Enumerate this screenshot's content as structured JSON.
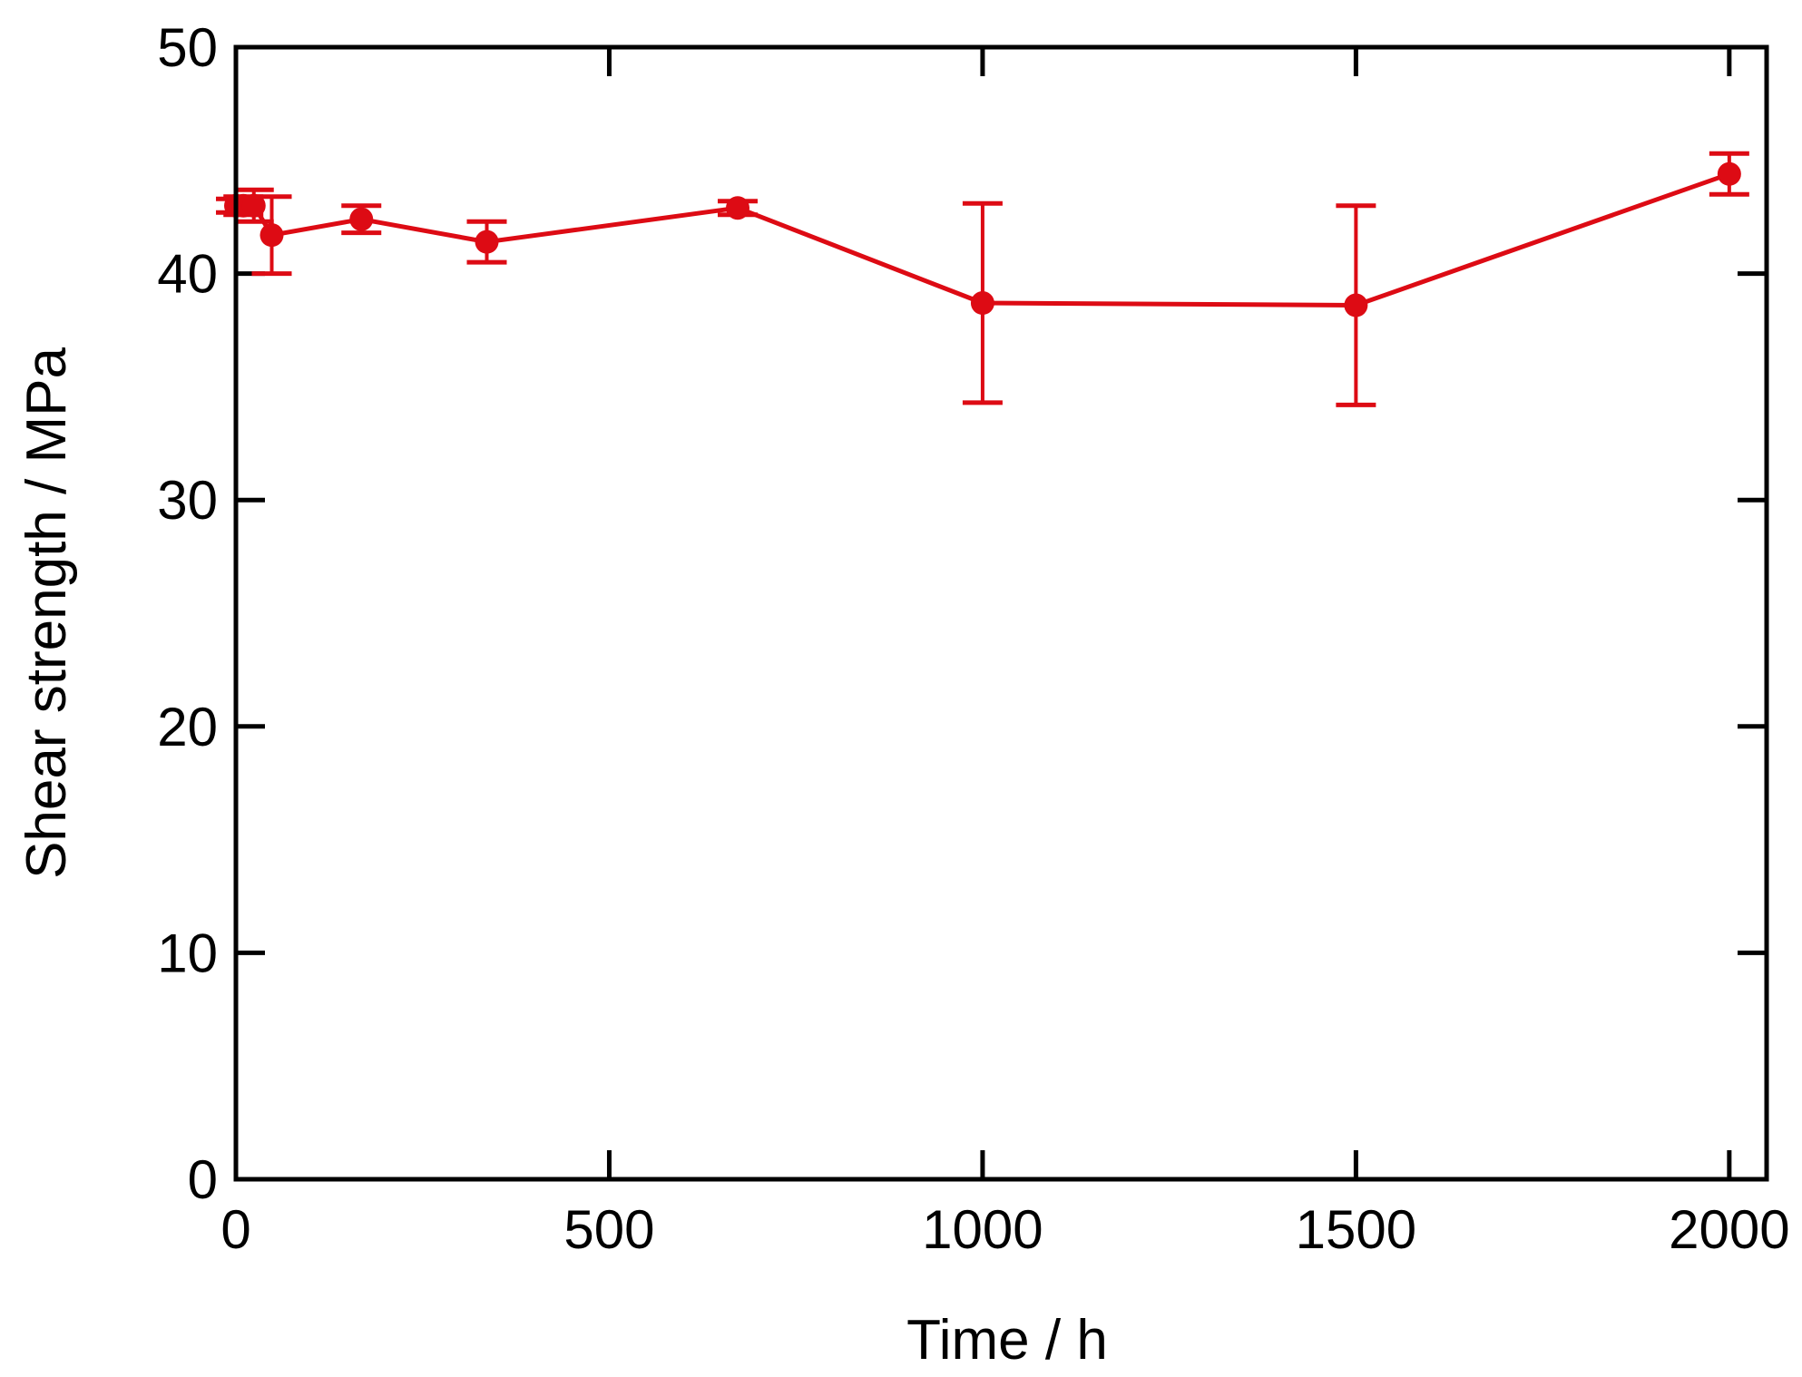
{
  "chart_data": {
    "type": "line",
    "title": "",
    "xlabel": "Time / h",
    "ylabel": "Shear strength / MPa",
    "xlim": [
      0,
      2050
    ],
    "ylim": [
      0,
      50
    ],
    "xticks": [
      0,
      500,
      1000,
      1500,
      2000
    ],
    "yticks": [
      0,
      10,
      20,
      30,
      40,
      50
    ],
    "grid": false,
    "legend": "none",
    "series": [
      {
        "color": "#dd0b14",
        "marker": "circle",
        "points": [
          {
            "x": 0,
            "y": 43.0,
            "err": 0.3
          },
          {
            "x": 10,
            "y": 43.0,
            "err": 0.4
          },
          {
            "x": 24,
            "y": 43.0,
            "err": 0.7
          },
          {
            "x": 48,
            "y": 41.7,
            "err": 1.7
          },
          {
            "x": 168,
            "y": 42.4,
            "err": 0.6
          },
          {
            "x": 336,
            "y": 41.4,
            "err": 0.9
          },
          {
            "x": 672,
            "y": 42.9,
            "err": 0.3
          },
          {
            "x": 1000,
            "y": 38.7,
            "err": 4.4
          },
          {
            "x": 1500,
            "y": 38.6,
            "err": 4.4
          },
          {
            "x": 2000,
            "y": 44.4,
            "err": 0.9
          }
        ]
      }
    ]
  }
}
